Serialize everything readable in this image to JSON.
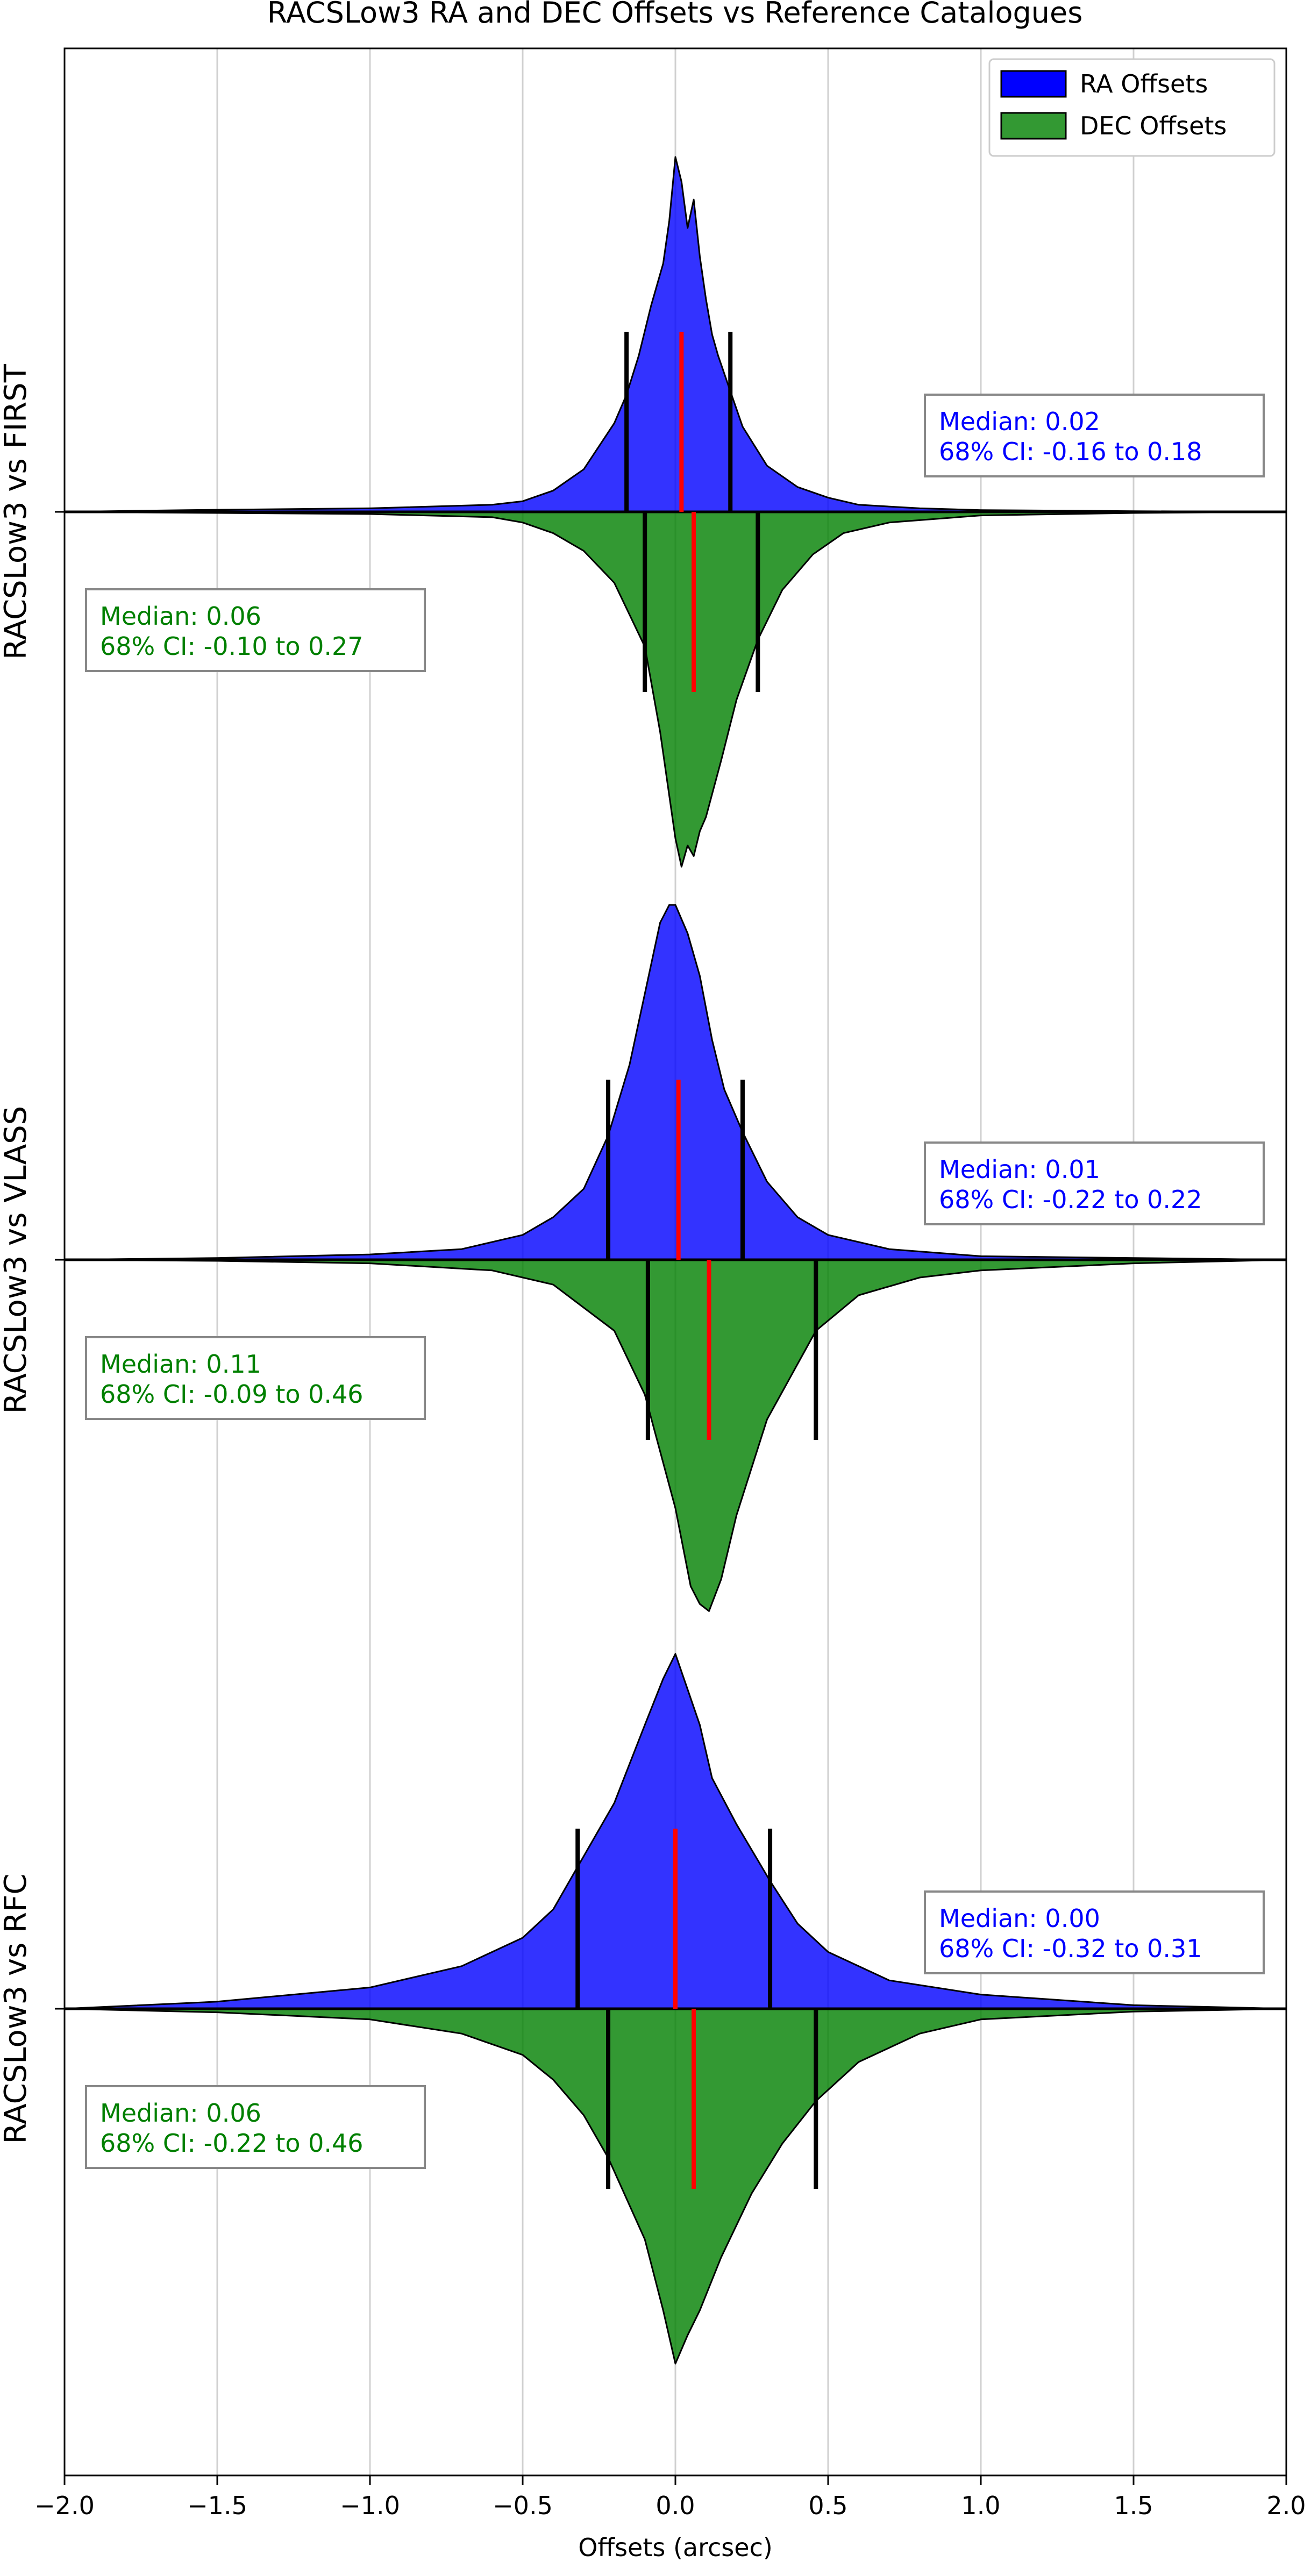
{
  "chart_data": {
    "type": "area",
    "title": "RACSLow3 RA and DEC Offsets vs Reference Catalogues",
    "xlabel": "Offsets (arcsec)",
    "xlim": [
      -2.0,
      2.0
    ],
    "xticks": [
      "−2.0",
      "−1.5",
      "−1.0",
      "−0.5",
      "0.0",
      "0.5",
      "1.0",
      "1.5",
      "2.0"
    ],
    "xtick_values": [
      -2.0,
      -1.5,
      -1.0,
      -0.5,
      0.0,
      0.5,
      1.0,
      1.5,
      2.0
    ],
    "grid": "vertical",
    "legend": {
      "placement": "top-right",
      "entries": [
        {
          "label": "RA Offsets",
          "color": "#0000ff"
        },
        {
          "label": "DEC Offsets",
          "color": "#008000"
        }
      ]
    },
    "colors": {
      "ra_fill": "#0000ff",
      "ra_box_text": "#0000ff",
      "dec_fill": "#008000",
      "dec_box_text": "#008000",
      "median_line": "#ff0000",
      "ci_line": "#000000",
      "grid": "#d0d0d0",
      "outline": "#000000"
    },
    "panels": [
      {
        "label": "RACSLow3 vs FIRST",
        "ra": {
          "median": 0.02,
          "ci_low": -0.16,
          "ci_high": 0.18,
          "text": [
            "Median: 0.02",
            "68% CI: -0.16 to 0.18"
          ],
          "x": [
            -2.0,
            -1.6,
            -1.0,
            -0.6,
            -0.5,
            -0.4,
            -0.3,
            -0.2,
            -0.16,
            -0.12,
            -0.08,
            -0.04,
            -0.02,
            0.0,
            0.02,
            0.04,
            0.06,
            0.08,
            0.1,
            0.12,
            0.14,
            0.18,
            0.22,
            0.3,
            0.4,
            0.5,
            0.6,
            0.8,
            1.0,
            1.5,
            2.0
          ],
          "y": [
            0.0,
            0.005,
            0.01,
            0.02,
            0.03,
            0.06,
            0.12,
            0.25,
            0.33,
            0.44,
            0.58,
            0.7,
            0.82,
            1.0,
            0.93,
            0.8,
            0.88,
            0.72,
            0.6,
            0.5,
            0.44,
            0.34,
            0.24,
            0.13,
            0.07,
            0.04,
            0.02,
            0.01,
            0.005,
            0.002,
            0.0
          ]
        },
        "dec": {
          "median": 0.06,
          "ci_low": -0.1,
          "ci_high": 0.27,
          "text": [
            "Median: 0.06",
            "68% CI: -0.10 to 0.27"
          ],
          "x": [
            -2.0,
            -1.5,
            -1.0,
            -0.6,
            -0.5,
            -0.4,
            -0.3,
            -0.2,
            -0.1,
            -0.05,
            0.0,
            0.02,
            0.04,
            0.06,
            0.08,
            0.1,
            0.15,
            0.2,
            0.27,
            0.35,
            0.45,
            0.55,
            0.7,
            1.0,
            1.5,
            2.0
          ],
          "y": [
            0.0,
            0.003,
            0.006,
            0.015,
            0.03,
            0.06,
            0.11,
            0.2,
            0.38,
            0.62,
            0.92,
            1.0,
            0.94,
            0.97,
            0.9,
            0.86,
            0.7,
            0.53,
            0.36,
            0.22,
            0.12,
            0.06,
            0.03,
            0.01,
            0.003,
            0.0
          ]
        }
      },
      {
        "label": "RACSLow3 vs VLASS",
        "ra": {
          "median": 0.01,
          "ci_low": -0.22,
          "ci_high": 0.22,
          "text": [
            "Median: 0.01",
            "68% CI: -0.22 to 0.22"
          ],
          "x": [
            -2.0,
            -1.5,
            -1.0,
            -0.7,
            -0.5,
            -0.4,
            -0.3,
            -0.22,
            -0.15,
            -0.1,
            -0.05,
            -0.02,
            0.0,
            0.04,
            0.08,
            0.12,
            0.16,
            0.22,
            0.3,
            0.4,
            0.5,
            0.7,
            1.0,
            1.5,
            2.0
          ],
          "y": [
            0.0,
            0.005,
            0.015,
            0.03,
            0.07,
            0.12,
            0.2,
            0.35,
            0.55,
            0.75,
            0.95,
            1.0,
            1.0,
            0.92,
            0.8,
            0.62,
            0.48,
            0.36,
            0.22,
            0.12,
            0.07,
            0.03,
            0.01,
            0.005,
            0.0
          ]
        },
        "dec": {
          "median": 0.11,
          "ci_low": -0.09,
          "ci_high": 0.46,
          "text": [
            "Median: 0.11",
            "68% CI: -0.09 to 0.46"
          ],
          "x": [
            -2.0,
            -1.5,
            -1.0,
            -0.6,
            -0.4,
            -0.2,
            -0.1,
            0.0,
            0.05,
            0.08,
            0.11,
            0.15,
            0.2,
            0.3,
            0.46,
            0.6,
            0.8,
            1.0,
            1.5,
            2.0
          ],
          "y": [
            0.0,
            0.003,
            0.01,
            0.03,
            0.07,
            0.2,
            0.38,
            0.7,
            0.92,
            0.97,
            0.99,
            0.9,
            0.72,
            0.45,
            0.2,
            0.1,
            0.05,
            0.03,
            0.01,
            0.0
          ]
        }
      },
      {
        "label": "RACSLow3 vs RFC",
        "ra": {
          "median": 0.0,
          "ci_low": -0.32,
          "ci_high": 0.31,
          "text": [
            "Median: 0.00",
            "68% CI: -0.32 to 0.31"
          ],
          "x": [
            -2.0,
            -1.5,
            -1.0,
            -0.7,
            -0.5,
            -0.4,
            -0.32,
            -0.2,
            -0.1,
            -0.04,
            0.0,
            0.04,
            0.08,
            0.12,
            0.2,
            0.31,
            0.4,
            0.5,
            0.7,
            1.0,
            1.5,
            2.0
          ],
          "y": [
            0.0,
            0.02,
            0.06,
            0.12,
            0.2,
            0.28,
            0.4,
            0.58,
            0.8,
            0.93,
            1.0,
            0.9,
            0.8,
            0.65,
            0.52,
            0.36,
            0.24,
            0.16,
            0.08,
            0.04,
            0.01,
            0.0
          ]
        },
        "dec": {
          "median": 0.06,
          "ci_low": -0.22,
          "ci_high": 0.46,
          "text": [
            "Median: 0.06",
            "68% CI: -0.22 to 0.46"
          ],
          "x": [
            -2.0,
            -1.5,
            -1.0,
            -0.7,
            -0.5,
            -0.4,
            -0.3,
            -0.22,
            -0.1,
            -0.04,
            0.0,
            0.04,
            0.08,
            0.15,
            0.25,
            0.35,
            0.46,
            0.6,
            0.8,
            1.0,
            1.5,
            2.0
          ],
          "y": [
            0.0,
            0.01,
            0.03,
            0.07,
            0.13,
            0.2,
            0.3,
            0.42,
            0.65,
            0.85,
            1.0,
            0.92,
            0.85,
            0.7,
            0.52,
            0.38,
            0.26,
            0.15,
            0.07,
            0.03,
            0.008,
            0.0
          ]
        }
      }
    ]
  }
}
